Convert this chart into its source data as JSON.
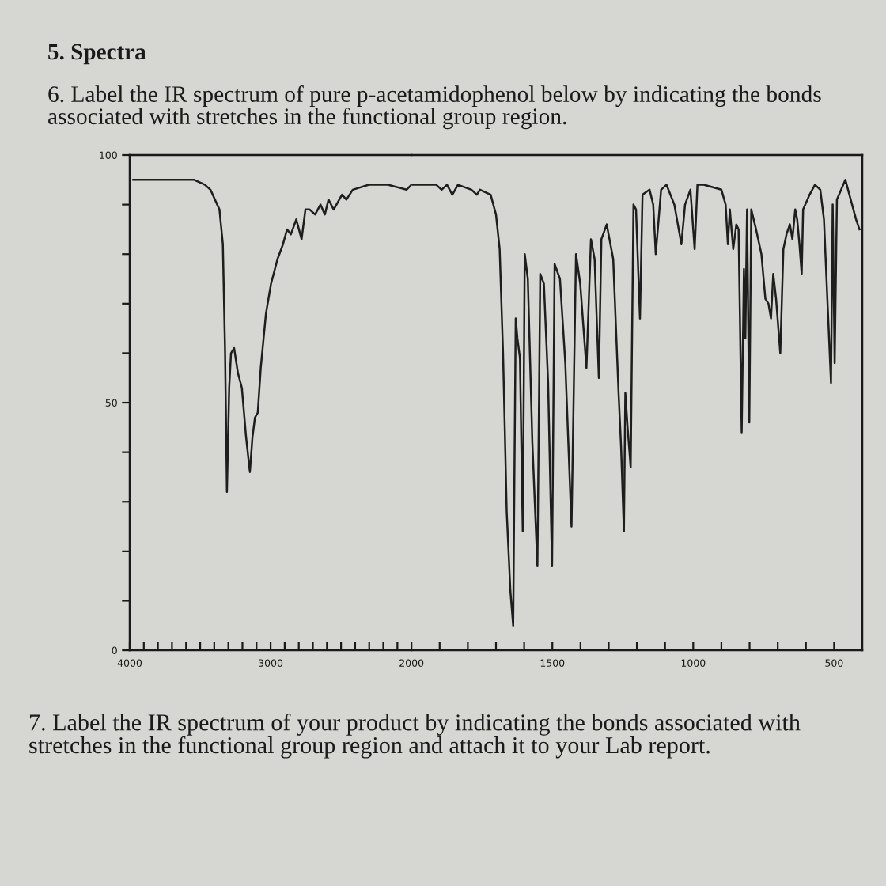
{
  "chart_data": [
    {
      "type": "line",
      "title": "5. Spectra",
      "subtitle": "6. Label the IR spectrum of pure p-acetamidophenol below by indicating the bonds associated with stretches in the functional group region.",
      "annotations": [
        "7. Label the IR spectrum of your product by indicating the bonds associated with stretches in the functional group region and attach it to your Lab report."
      ],
      "x": [
        3975,
        3750,
        3542,
        3466,
        3427,
        3363,
        3339,
        3323,
        3310,
        3294,
        3281,
        3259,
        3232,
        3204,
        3174,
        3147,
        3129,
        3111,
        3091,
        3070,
        3033,
        2997,
        2951,
        2912,
        2883,
        2856,
        2818,
        2780,
        2753,
        2723,
        2684,
        2646,
        2615,
        2589,
        2552,
        2493,
        2462,
        2417,
        2302,
        2168,
        2035,
        2000
      ],
      "values": [
        95,
        95,
        95,
        94,
        93,
        89,
        82,
        60,
        32,
        53,
        60,
        61,
        56,
        53,
        43,
        36,
        43,
        47,
        48,
        57,
        68,
        74,
        79,
        82,
        85,
        84,
        87,
        83,
        89,
        89,
        88,
        90,
        88,
        91,
        89,
        92,
        91,
        93,
        94,
        94,
        93,
        94
      ],
      "color": "#1e1e1e",
      "line_style": "solid",
      "xlim": [
        4000,
        2000
      ],
      "xticks": [
        4000,
        {
          "value": 3900,
          "label": null
        },
        {
          "value": 3800,
          "label": null
        },
        {
          "value": 3700,
          "label": null
        },
        {
          "value": 3600,
          "label": null
        },
        {
          "value": 3500,
          "label": null
        },
        {
          "value": 3400,
          "label": null
        },
        {
          "value": 3300,
          "label": null
        },
        {
          "value": 3200,
          "label": null
        },
        {
          "value": 3100,
          "label": null
        },
        3000,
        {
          "value": 2900,
          "label": null
        },
        {
          "value": 2800,
          "label": null
        },
        {
          "value": 2700,
          "label": null
        },
        {
          "value": 2600,
          "label": null
        },
        {
          "value": 2500,
          "label": null
        },
        {
          "value": 2400,
          "label": null
        },
        {
          "value": 2300,
          "label": null
        },
        {
          "value": 2200,
          "label": null
        },
        {
          "value": 2100,
          "label": null
        }
      ],
      "ylim": [
        0,
        100
      ],
      "yticks": [
        0,
        {
          "value": 10,
          "label": null
        },
        {
          "value": 20,
          "label": null
        },
        {
          "value": 30,
          "label": null
        },
        {
          "value": 40,
          "label": null
        },
        50,
        {
          "value": 60,
          "label": null
        },
        {
          "value": 70,
          "label": null
        },
        {
          "value": 80,
          "label": null
        },
        {
          "value": 90,
          "label": null
        },
        100
      ]
    },
    {
      "type": "line",
      "x": [
        2000,
        1960,
        1912,
        1893,
        1874,
        1855,
        1835,
        1787,
        1768,
        1757,
        1719,
        1700,
        1687,
        1675,
        1662,
        1649,
        1639,
        1630,
        1624,
        1615,
        1605,
        1598,
        1587,
        1571,
        1553,
        1543,
        1530,
        1515,
        1501,
        1492,
        1473,
        1454,
        1432,
        1416,
        1401,
        1379,
        1363,
        1350,
        1335,
        1326,
        1307,
        1284,
        1265,
        1256,
        1246,
        1241,
        1233,
        1222,
        1212,
        1203,
        1189,
        1180,
        1155,
        1142,
        1133,
        1114,
        1095,
        1067,
        1042,
        1029,
        1010,
        995,
        985,
        963,
        900,
        885,
        877,
        870,
        858,
        847,
        839,
        828,
        820,
        815,
        809,
        801,
        794,
        777,
        758,
        744,
        733,
        724,
        716,
        706,
        691,
        680,
        669,
        657,
        648,
        638,
        631,
        623,
        615,
        610,
        587,
        568,
        549,
        536,
        524,
        511,
        505,
        498,
        490,
        460,
        441,
        422,
        410
      ],
      "values": [
        94,
        94,
        94,
        93,
        94,
        92,
        94,
        93,
        92,
        93,
        92,
        88,
        81,
        60,
        28,
        12,
        5,
        67,
        63,
        59,
        24,
        80,
        75,
        42,
        17,
        76,
        74,
        54,
        17,
        78,
        75,
        58,
        25,
        80,
        74,
        57,
        83,
        79,
        55,
        83,
        86,
        79,
        52,
        41,
        24,
        52,
        45,
        37,
        90,
        89,
        67,
        92,
        93,
        90,
        80,
        93,
        94,
        90,
        82,
        90,
        93,
        81,
        94,
        94,
        93,
        90,
        82,
        89,
        81,
        86,
        85,
        44,
        77,
        63,
        89,
        46,
        89,
        85,
        80,
        71,
        70,
        67,
        76,
        71,
        60,
        81,
        84,
        86,
        83,
        89,
        87,
        82,
        76,
        89,
        92,
        94,
        93,
        87,
        71,
        54,
        90,
        58,
        91,
        95,
        91,
        87,
        85
      ],
      "color": "#1e1e1e",
      "line_style": "solid",
      "xlim": [
        2000,
        400
      ],
      "xticks": [
        2000,
        {
          "value": 1900,
          "label": null
        },
        {
          "value": 1800,
          "label": null
        },
        {
          "value": 1700,
          "label": null
        },
        {
          "value": 1600,
          "label": null
        },
        1500,
        {
          "value": 1400,
          "label": null
        },
        {
          "value": 1300,
          "label": null
        },
        {
          "value": 1200,
          "label": null
        },
        {
          "value": 1100,
          "label": null
        },
        1000,
        {
          "value": 900,
          "label": null
        },
        {
          "value": 800,
          "label": null
        },
        {
          "value": 700,
          "label": null
        },
        {
          "value": 600,
          "label": null
        },
        500
      ],
      "ylim": [
        0,
        100
      ],
      "tick_labels": "x"
    }
  ]
}
